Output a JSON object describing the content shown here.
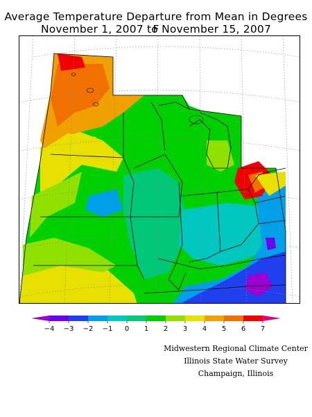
{
  "title": {
    "line1": "Average Temperature Departure from Mean in Degrees F",
    "line2": "November 1, 2007 to November 15, 2007"
  },
  "legend": {
    "ticks": [
      "−4",
      "−3",
      "−2",
      "−1",
      "0",
      "1",
      "2",
      "3",
      "4",
      "5",
      "6",
      "7"
    ],
    "colors": [
      "#9b00d0",
      "#6a00ee",
      "#2040f0",
      "#00a0e8",
      "#00c8c0",
      "#00c878",
      "#00d000",
      "#90e000",
      "#e8e000",
      "#f0a000",
      "#f07000",
      "#f00000",
      "#e00080"
    ]
  },
  "credits": {
    "line1": "Midwestern Regional Climate Center",
    "line2": "Illinois State Water Survey",
    "line3": "Champaign, Illinois"
  }
}
